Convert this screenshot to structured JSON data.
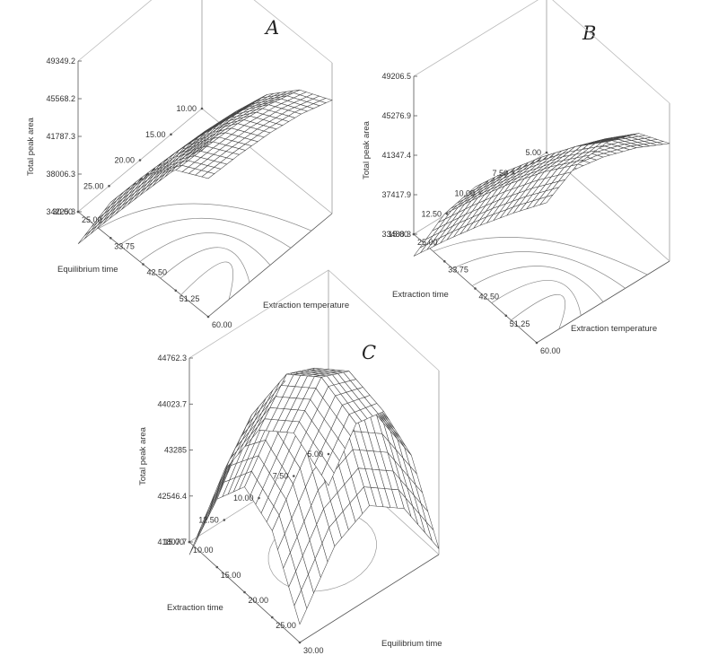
{
  "chart_data": [
    {
      "type": "surface",
      "panel_label": "A",
      "zlabel": "Total peak area",
      "xlabel": "Extraction temperature",
      "ylabel": "Equilibrium time",
      "x_ticks": [
        "25.00",
        "33.75",
        "42.50",
        "51.25",
        "60.00"
      ],
      "y_ticks": [
        "10.00",
        "15.00",
        "20.00",
        "25.00",
        "30.00"
      ],
      "z_ticks": [
        "34225.3",
        "38006.3",
        "41787.3",
        "45568.2",
        "49349.2"
      ],
      "xlim": [
        25,
        60
      ],
      "ylim": [
        10,
        30
      ],
      "zlim": [
        34225.3,
        49349.2
      ],
      "surface": {
        "x": [
          25,
          33.75,
          42.5,
          51.25,
          60
        ],
        "y": [
          10,
          15,
          20,
          25,
          30
        ],
        "z": [
          [
            30000,
            36200,
            40900,
            44000,
            45600
          ],
          [
            30400,
            36900,
            41800,
            45100,
            46800
          ],
          [
            30700,
            37400,
            42400,
            45800,
            47500
          ],
          [
            30900,
            37700,
            42700,
            46100,
            47900
          ],
          [
            31000,
            37800,
            42800,
            46300,
            48100
          ]
        ]
      }
    },
    {
      "type": "surface",
      "panel_label": "B",
      "zlabel": "Total peak area",
      "xlabel": "Extraction temperature",
      "ylabel": "Extraction time",
      "x_ticks": [
        "25.00",
        "33.75",
        "42.50",
        "51.25",
        "60.00"
      ],
      "y_ticks": [
        "5.00",
        "7.50",
        "10.00",
        "12.50",
        "15.00"
      ],
      "z_ticks": [
        "33488.3",
        "37417.9",
        "41347.4",
        "45276.9",
        "49206.5"
      ],
      "xlim": [
        25,
        60
      ],
      "ylim": [
        5,
        15
      ],
      "zlim": [
        33488.3,
        49206.5
      ],
      "surface": {
        "x": [
          25,
          33.75,
          42.5,
          51.25,
          60
        ],
        "y": [
          5,
          7.5,
          10,
          12.5,
          15
        ],
        "z": [
          [
            28500,
            35000,
            40000,
            43500,
            45200
          ],
          [
            29500,
            36300,
            41500,
            45000,
            46800
          ],
          [
            30300,
            37200,
            42500,
            46100,
            47900
          ],
          [
            30900,
            37800,
            43200,
            46800,
            48500
          ],
          [
            31300,
            38200,
            43600,
            47200,
            48900
          ]
        ]
      }
    },
    {
      "type": "surface",
      "panel_label": "C",
      "zlabel": "Total peak area",
      "xlabel": "Equilibrium time",
      "ylabel": "Extraction time",
      "x_ticks": [
        "10.00",
        "15.00",
        "20.00",
        "25.00",
        "30.00"
      ],
      "y_ticks": [
        "5.00",
        "7.50",
        "10.00",
        "12.50",
        "15.00"
      ],
      "z_ticks": [
        "41807.7",
        "42546.4",
        "43285",
        "44023.7",
        "44762.3"
      ],
      "xlim": [
        10,
        30
      ],
      "ylim": [
        5,
        15
      ],
      "zlim": [
        41807.7,
        44762.3
      ],
      "surface": {
        "x": [
          10,
          15,
          20,
          25,
          30
        ],
        "y": [
          5,
          7.5,
          10,
          12.5,
          15
        ],
        "z": [
          [
            41300,
            42700,
            43300,
            43000,
            41900
          ],
          [
            42500,
            43800,
            44300,
            44000,
            42900
          ],
          [
            42900,
            44200,
            44700,
            44400,
            43300
          ],
          [
            42600,
            43900,
            44400,
            44100,
            43000
          ],
          [
            41600,
            42900,
            43500,
            43200,
            42100
          ]
        ]
      }
    }
  ]
}
